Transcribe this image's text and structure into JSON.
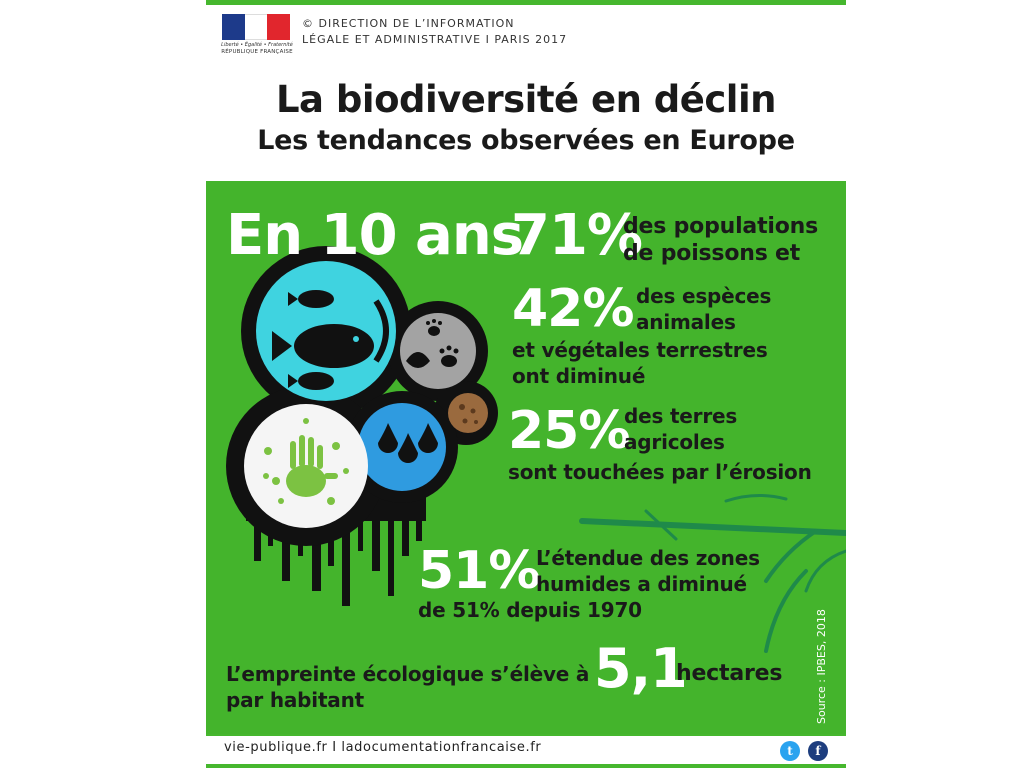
{
  "header": {
    "logo_motto": "Liberté • Égalité • Fraternité",
    "logo_republic": "RÉPUBLIQUE FRANÇAISE",
    "credit_line1": "© DIRECTION DE L’INFORMATION",
    "credit_line2": "LÉGALE ET ADMINISTRATIVE I PARIS 2017",
    "title": "La biodiversité en déclin",
    "subtitle": "Les tendances observées en Europe"
  },
  "stats": {
    "lead": "En 10 ans",
    "fish_value": "71%",
    "fish_desc_1": "des populations",
    "fish_desc_2": "de poissons et",
    "species_value": "42%",
    "species_desc_1": "des espèces",
    "species_desc_2": "animales",
    "species_desc_3": "et végétales terrestres",
    "species_desc_4": "ont diminué",
    "land_value": "25%",
    "land_desc_1": "des terres",
    "land_desc_2": "agricoles",
    "land_desc_3": "sont touchées par l’érosion",
    "wetland_value": "51%",
    "wetland_desc_1": "L’étendue des zones",
    "wetland_desc_2": "humides a diminué",
    "wetland_desc_3": "de 51% depuis 1970",
    "footprint_prefix": "L’empreinte écologique s’élève à",
    "footprint_value": "5,1",
    "footprint_unit": "hectares",
    "footprint_suffix": "par habitant"
  },
  "source": "Source : IPBES, 2018",
  "footer": {
    "links": "vie-publique.fr I ladocumentationfrancaise.fr",
    "twitter_glyph": "t",
    "facebook_glyph": "f"
  },
  "colors": {
    "green": "#44b42c",
    "cyan": "#3fd3e0",
    "blue": "#2f9be0",
    "grey": "#a3a3a3",
    "brown": "#9a6a3e",
    "twitter": "#2aa3ef",
    "facebook": "#1d3d7e"
  },
  "icons": [
    "marianne-logo-icon",
    "fish-icon",
    "paw-print-icon",
    "leaf-icon",
    "soil-icon",
    "water-drops-icon",
    "handprint-icon",
    "bamboo-icon",
    "twitter-icon",
    "facebook-icon"
  ]
}
